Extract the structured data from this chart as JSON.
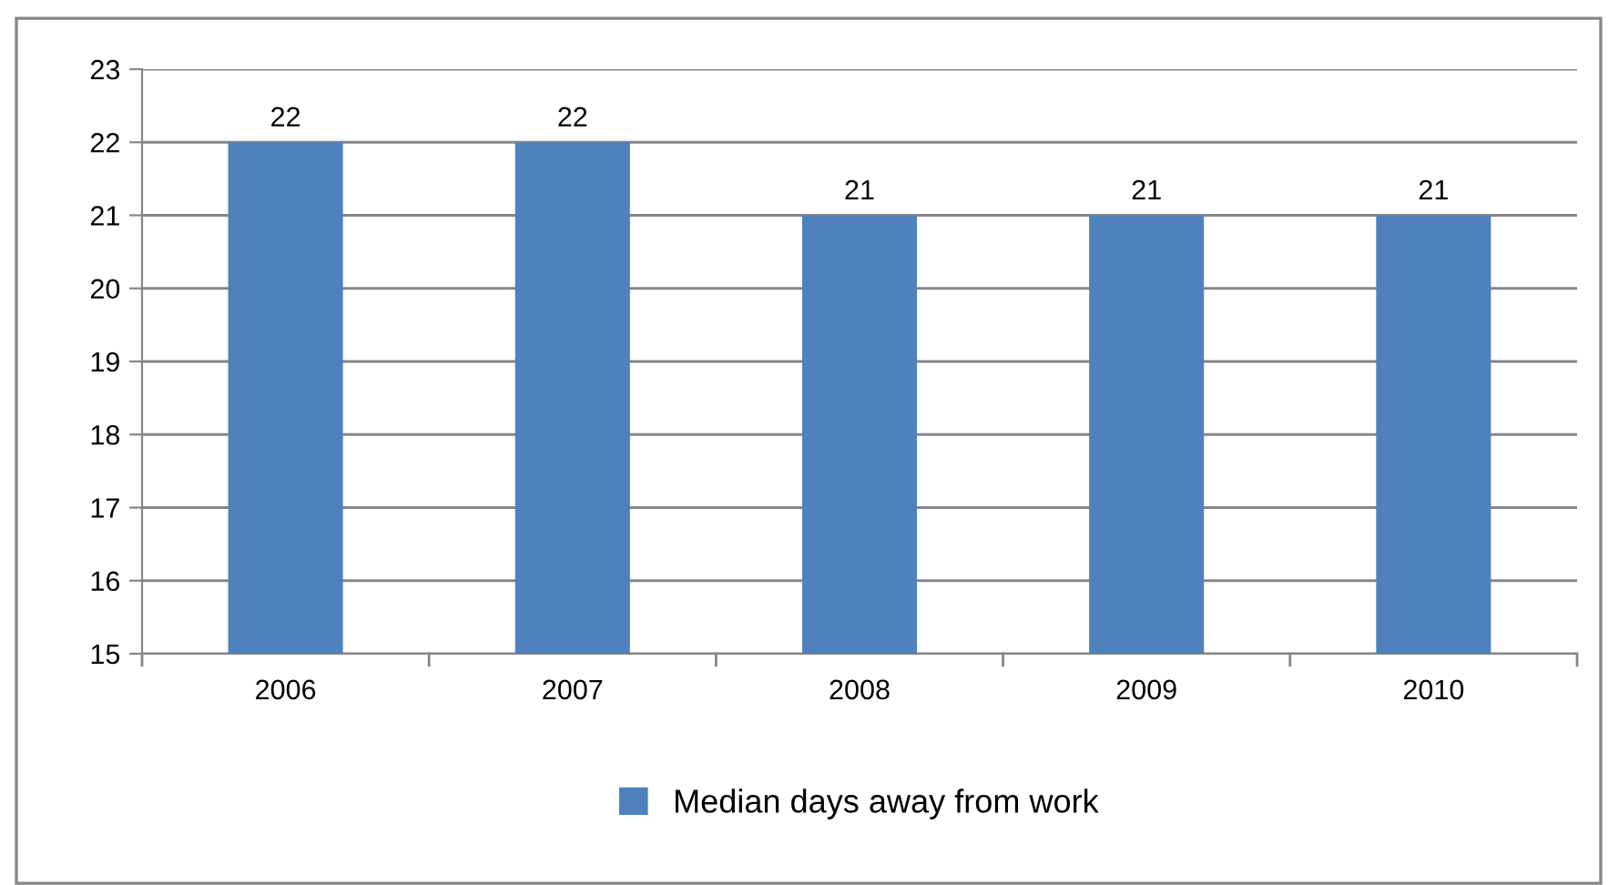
{
  "chart_data": {
    "type": "bar",
    "categories": [
      "2006",
      "2007",
      "2008",
      "2009",
      "2010"
    ],
    "series": [
      {
        "name": "Median days away from work",
        "color": "#4f81bd",
        "values": [
          22,
          22,
          21,
          21,
          21
        ]
      }
    ],
    "ylim": [
      15,
      23
    ],
    "yticks": [
      15,
      16,
      17,
      18,
      19,
      20,
      21,
      22,
      23
    ],
    "grid": "y",
    "legend": "bottom",
    "data_labels": true
  }
}
